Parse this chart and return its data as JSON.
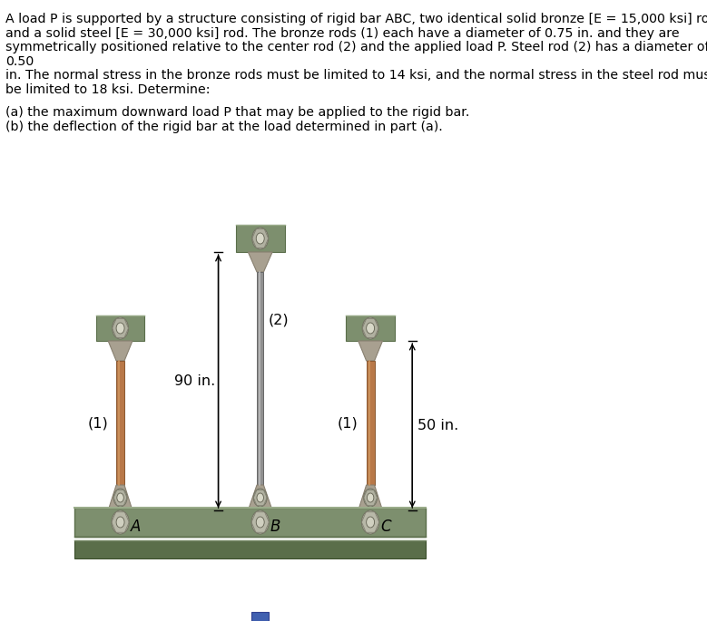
{
  "text_block_line1": "A load P is supported by a structure consisting of rigid bar ABC, two identical solid bronze [E = 15,000 ksi] rods,",
  "text_block_line2": "and a solid steel [E = 30,000 ksi] rod. The bronze rods (1) each have a diameter of 0.75 in. and they are",
  "text_block_line3": "symmetrically positioned relative to the center rod (2) and the applied load P. Steel rod (2) has a diameter of",
  "text_block_line4": "0.50",
  "text_block_line5": "in. The normal stress in the bronze rods must be limited to 14 ksi, and the normal stress in the steel rod must",
  "text_block_line6": "be limited to 18 ksi. Determine:",
  "subtext_a": "(a) the maximum downward load P that may be applied to the rigid bar.",
  "subtext_b": "(b) the deflection of the rigid bar at the load determined in part (a).",
  "label_1": "(1)",
  "label_2": "(2)",
  "label_A": "A",
  "label_B": "B",
  "label_C": "C",
  "dim_90": "90 in.",
  "dim_50": "50 in.",
  "bg_color": "#ffffff",
  "bar_green": "#7d8f6e",
  "bar_green_dark": "#5a6e4a",
  "bar_green_light": "#9aac8a",
  "rod_bronze_main": "#b87848",
  "rod_bronze_light": "#d09860",
  "rod_bronze_dark": "#8a5830",
  "rod_steel_main": "#909090",
  "rod_steel_light": "#c0c0c0",
  "rod_steel_dark": "#686868",
  "clevis_main": "#a8a090",
  "clevis_dark": "#888070",
  "bolt_main": "#b0b0a0",
  "bolt_hole": "#d8d8c8",
  "blue_rect": "#4060b0",
  "font_text": 10.2,
  "font_label": 11.5,
  "font_dim": 11.5
}
